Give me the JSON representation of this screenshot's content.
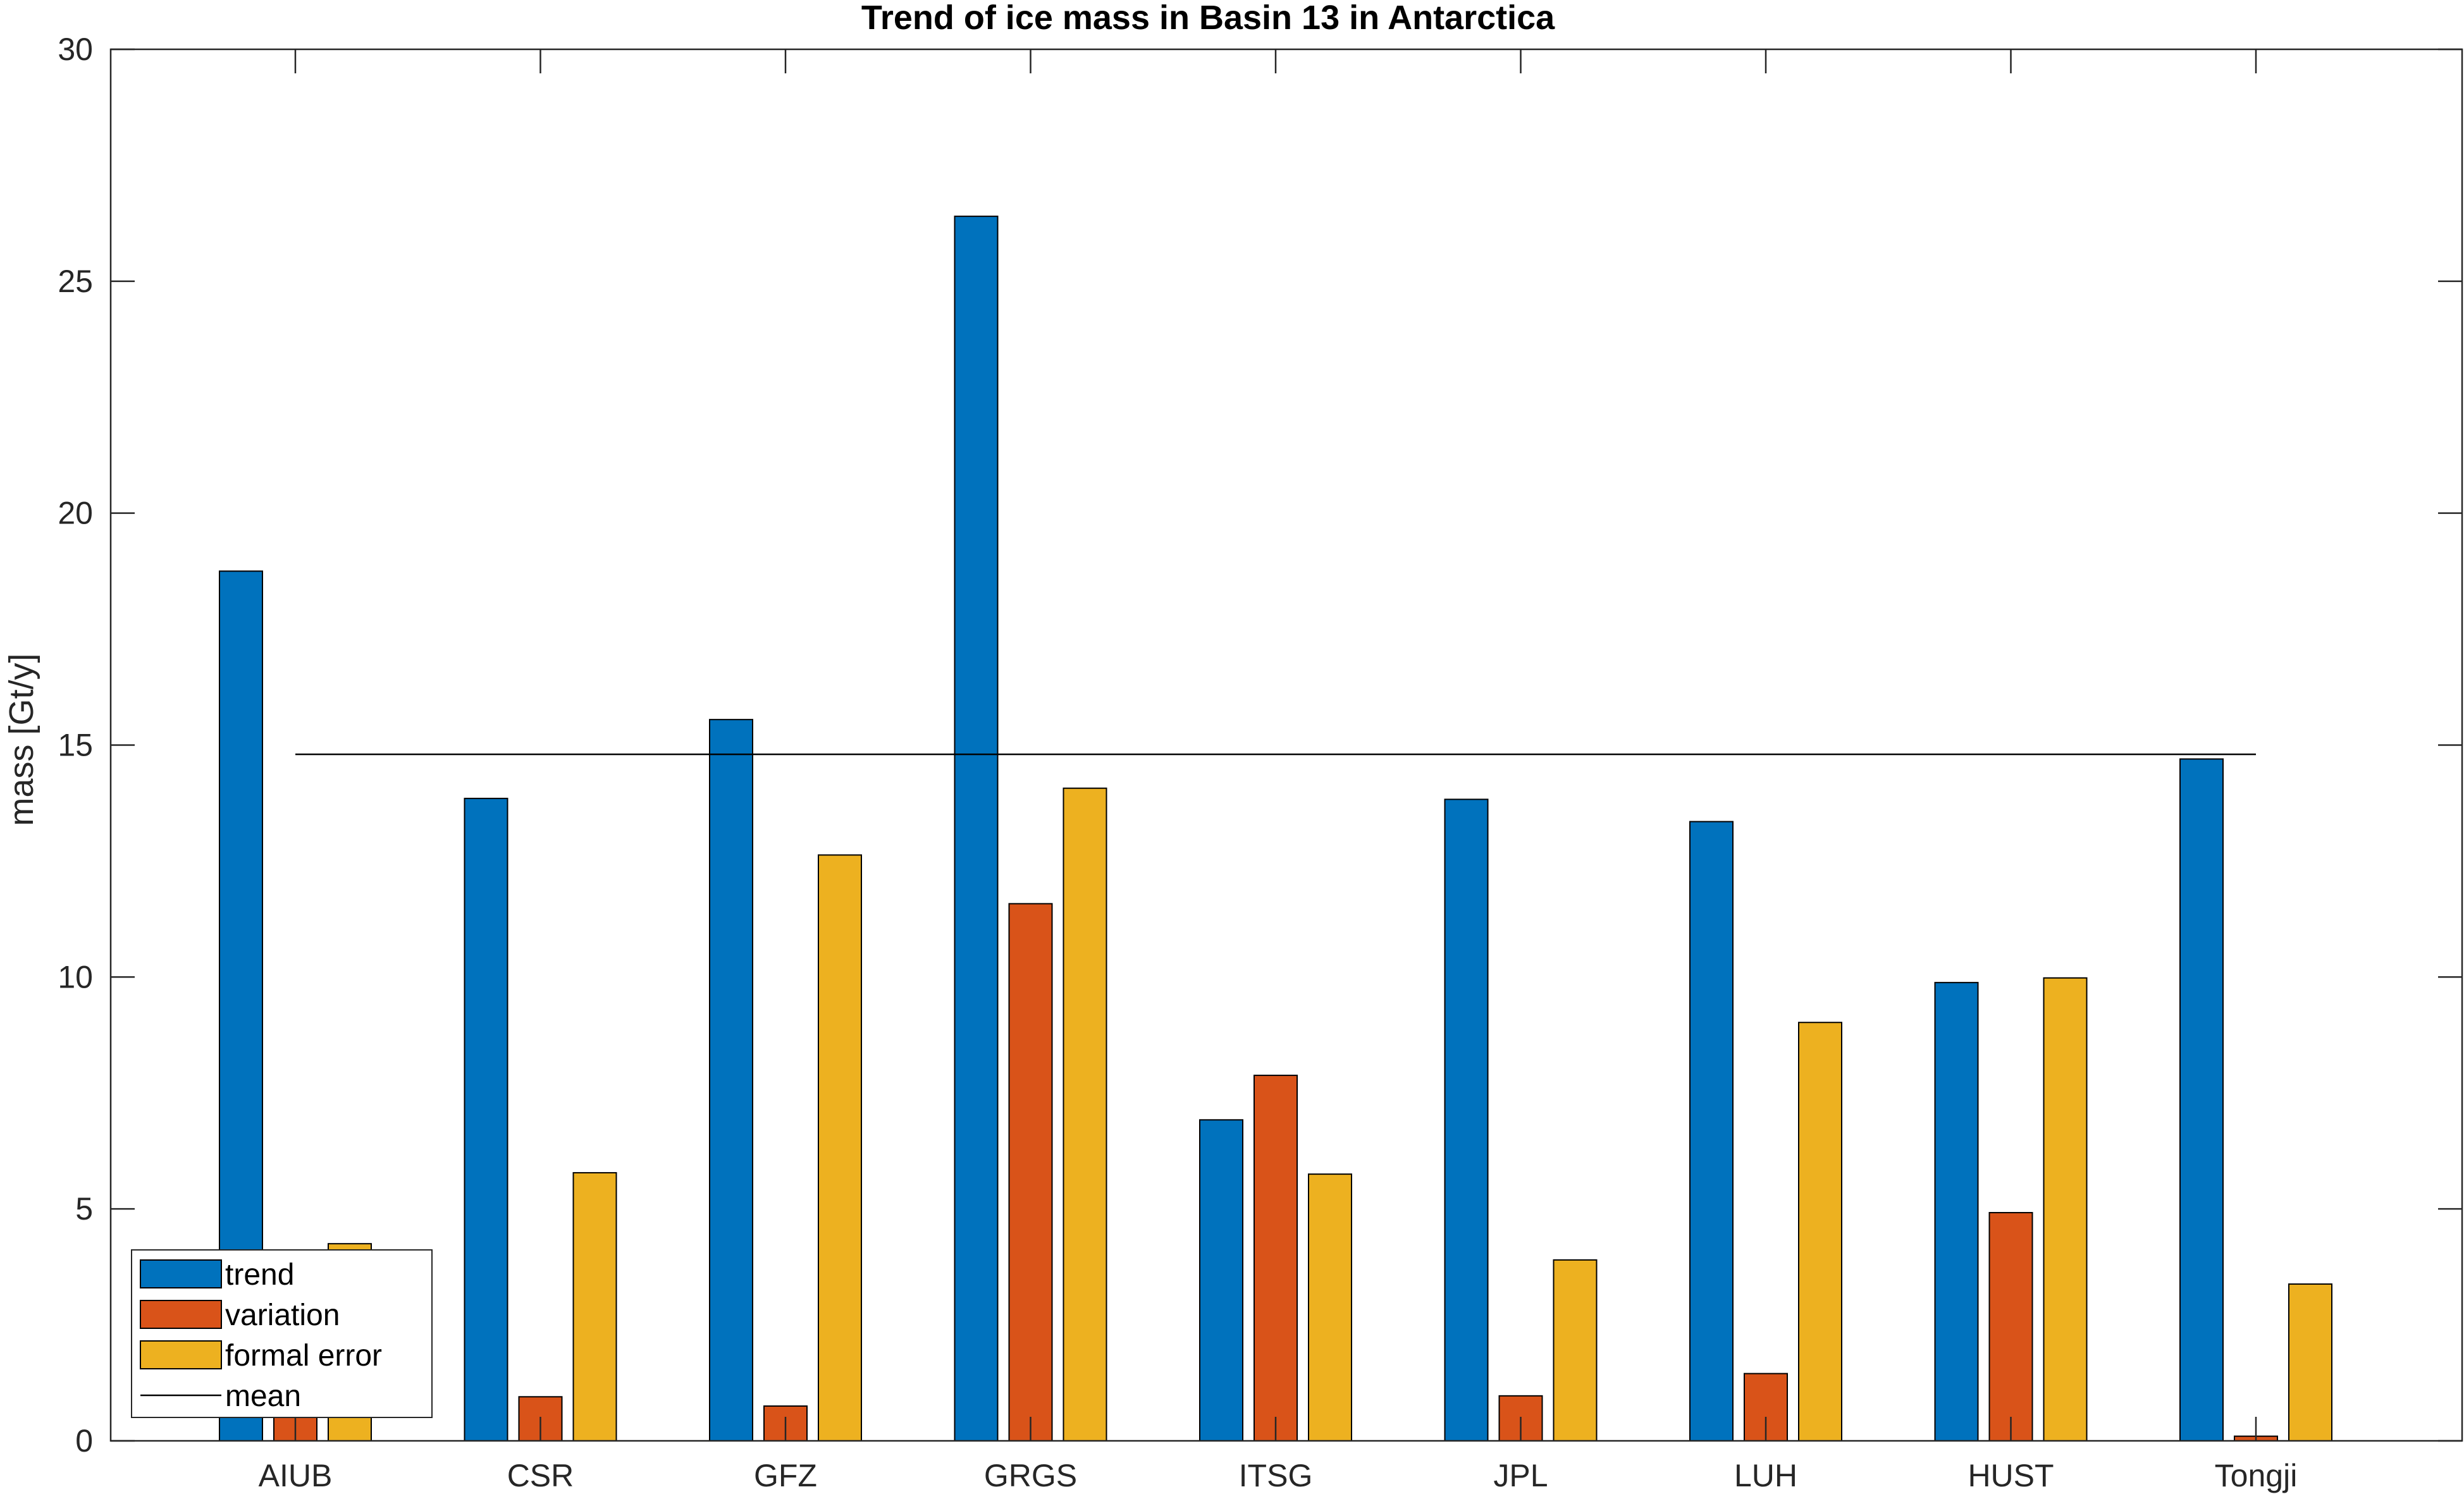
{
  "chart_data": {
    "type": "bar",
    "title": "Trend of ice mass in Basin 13 in Antarctica",
    "xlabel": "",
    "ylabel": "mass [Gt/y]",
    "categories": [
      "AIUB",
      "CSR",
      "GFZ",
      "GRGS",
      "ITSG",
      "JPL",
      "LUH",
      "HUST",
      "Tongji"
    ],
    "series": [
      {
        "name": "trend",
        "color": "#0072BD",
        "values": [
          18.75,
          13.85,
          15.55,
          26.4,
          6.92,
          13.83,
          13.35,
          9.88,
          14.7
        ]
      },
      {
        "name": "variation",
        "color": "#D95319",
        "values": [
          1.0,
          0.95,
          0.75,
          11.58,
          7.88,
          0.97,
          1.45,
          4.92,
          0.1
        ]
      },
      {
        "name": "formal error",
        "color": "#EDB120",
        "values": [
          4.25,
          5.78,
          12.63,
          14.07,
          5.75,
          3.9,
          9.02,
          9.98,
          3.38
        ]
      }
    ],
    "mean": {
      "name": "mean",
      "value": 14.8,
      "color": "#000000"
    },
    "ylim": [
      0,
      30
    ],
    "yticks": [
      0,
      5,
      10,
      15,
      20,
      25,
      30
    ],
    "grid": false,
    "legend_position": "bottom-left"
  }
}
